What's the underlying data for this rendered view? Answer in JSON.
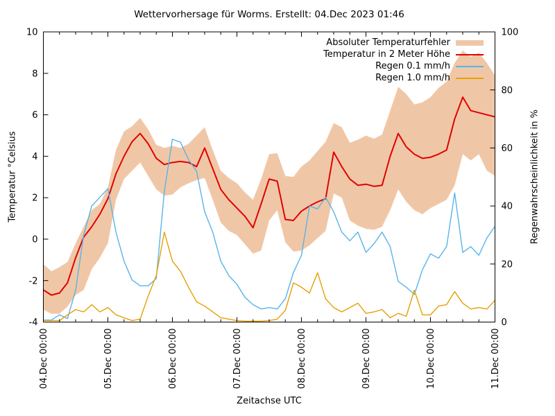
{
  "chart_data": {
    "type": "line",
    "title": "Wettervorhersage für Worms. Erstellt: 04.Dec 2023 01:46",
    "xlabel": "Zeitachse UTC",
    "ylabel_left": "Temperatur °Celsius",
    "ylabel_right": "Regenwahrscheinlichkeit in %",
    "x_range": [
      0,
      168
    ],
    "y_left_range": [
      -4,
      10
    ],
    "y_right_range": [
      0,
      100
    ],
    "y_left_ticks": [
      -4,
      -2,
      0,
      2,
      4,
      6,
      8,
      10
    ],
    "y_right_ticks": [
      0,
      20,
      40,
      60,
      80,
      100
    ],
    "x_major_every_hours": 24,
    "x_minor_every_hours": 6,
    "x_major_tick_labels": [
      "04.Dec 00:00",
      "05.Dec 00:00",
      "06.Dec 00:00",
      "07.Dec 00:00",
      "08.Dec 00:00",
      "09.Dec 00:00",
      "10.Dec 00:00",
      "11.Dec 00:00"
    ],
    "legend_position": "top-right-inside",
    "grid": false,
    "x": [
      0,
      3,
      6,
      9,
      12,
      15,
      18,
      21,
      24,
      27,
      30,
      33,
      36,
      39,
      42,
      45,
      48,
      51,
      54,
      57,
      60,
      63,
      66,
      69,
      72,
      75,
      78,
      81,
      84,
      87,
      90,
      93,
      96,
      99,
      102,
      105,
      108,
      111,
      114,
      117,
      120,
      123,
      126,
      129,
      132,
      135,
      138,
      141,
      144,
      147,
      150,
      153,
      156,
      159,
      162,
      165,
      168
    ],
    "series": [
      {
        "id": "error-band",
        "name": "Absoluter Temperaturfehler",
        "type": "band",
        "axis": "left",
        "color": "rgba(213,94,0,0.35)",
        "upper": [
          -1.2,
          -1.55,
          -1.35,
          -1.1,
          -0.2,
          0.6,
          1.4,
          1.7,
          2.5,
          4.3,
          5.2,
          5.45,
          5.85,
          5.3,
          4.55,
          4.4,
          4.5,
          4.4,
          4.6,
          5.0,
          5.4,
          4.3,
          3.3,
          2.95,
          2.7,
          2.25,
          1.9,
          2.9,
          4.1,
          4.15,
          3.05,
          3.0,
          3.5,
          3.8,
          4.25,
          4.7,
          5.6,
          5.4,
          4.65,
          4.8,
          5.0,
          4.85,
          5.05,
          6.2,
          7.35,
          7.0,
          6.5,
          6.6,
          6.85,
          7.3,
          7.6,
          8.5,
          9.1,
          8.8,
          9.0,
          8.5,
          7.9
        ],
        "lower": [
          -3.4,
          -3.6,
          -3.6,
          -3.25,
          -2.7,
          -2.45,
          -1.45,
          -0.9,
          -0.2,
          1.9,
          2.9,
          3.3,
          3.7,
          3.05,
          2.4,
          2.1,
          2.15,
          2.5,
          2.7,
          2.85,
          2.95,
          1.9,
          0.8,
          0.4,
          0.2,
          -0.25,
          -0.7,
          -0.55,
          0.9,
          1.4,
          -0.15,
          -0.6,
          -0.55,
          -0.3,
          0.05,
          0.4,
          2.2,
          2.0,
          0.9,
          0.65,
          0.5,
          0.45,
          0.6,
          1.4,
          2.4,
          1.8,
          1.4,
          1.2,
          1.5,
          1.7,
          1.9,
          2.6,
          4.1,
          3.8,
          4.1,
          3.3,
          3.05
        ]
      },
      {
        "id": "temperature",
        "name": "Temperatur in 2 Meter Höhe",
        "type": "line",
        "axis": "left",
        "color": "#e00000",
        "values": [
          -2.45,
          -2.7,
          -2.6,
          -2.1,
          -0.9,
          0.1,
          0.6,
          1.2,
          1.95,
          3.15,
          4.0,
          4.7,
          5.1,
          4.6,
          3.9,
          3.6,
          3.7,
          3.75,
          3.7,
          3.5,
          4.4,
          3.4,
          2.4,
          1.9,
          1.5,
          1.1,
          0.55,
          1.7,
          2.9,
          2.8,
          0.95,
          0.9,
          1.35,
          1.6,
          1.8,
          1.95,
          4.2,
          3.5,
          2.9,
          2.6,
          2.65,
          2.55,
          2.6,
          4.0,
          5.1,
          4.45,
          4.1,
          3.9,
          3.95,
          4.1,
          4.3,
          5.8,
          6.85,
          6.2,
          6.1,
          6.0,
          5.9
        ]
      },
      {
        "id": "rain-01",
        "name": "Regen 0.1 mm/h",
        "type": "line",
        "axis": "right",
        "color": "#56b4e9",
        "values": [
          0.7,
          0.7,
          2.5,
          1.2,
          11,
          30,
          40,
          43,
          46,
          31,
          21,
          14.5,
          12.5,
          12.5,
          15,
          45,
          63,
          62,
          56,
          52,
          38,
          31,
          21,
          16,
          13,
          8.5,
          6,
          4.5,
          5,
          4.5,
          8,
          17,
          23,
          40,
          39,
          43,
          38,
          31,
          28,
          31,
          24,
          27,
          31,
          26,
          14,
          12,
          9.5,
          18,
          23.5,
          22,
          26,
          44.5,
          24,
          26,
          23,
          29,
          33
        ]
      },
      {
        "id": "rain-10",
        "name": "Regen 1.0 mm/h",
        "type": "line",
        "axis": "right",
        "color": "#e69f00",
        "values": [
          0.5,
          0.5,
          0.5,
          2.5,
          4.3,
          3.5,
          6,
          3.5,
          5,
          2.5,
          1.5,
          0.5,
          1,
          9,
          16,
          31,
          21,
          17.5,
          12,
          7,
          5.5,
          3.5,
          1.5,
          1,
          0.5,
          0.3,
          0.3,
          0.3,
          0.5,
          1,
          4,
          13.5,
          12,
          10,
          17,
          8,
          5,
          3.5,
          5,
          6.5,
          3,
          3.5,
          4.3,
          1.5,
          3,
          2,
          11,
          2.5,
          2.5,
          5.5,
          6,
          10.5,
          6.5,
          4.5,
          5,
          4.5,
          7.5
        ]
      }
    ]
  },
  "frame_color": "#000000"
}
